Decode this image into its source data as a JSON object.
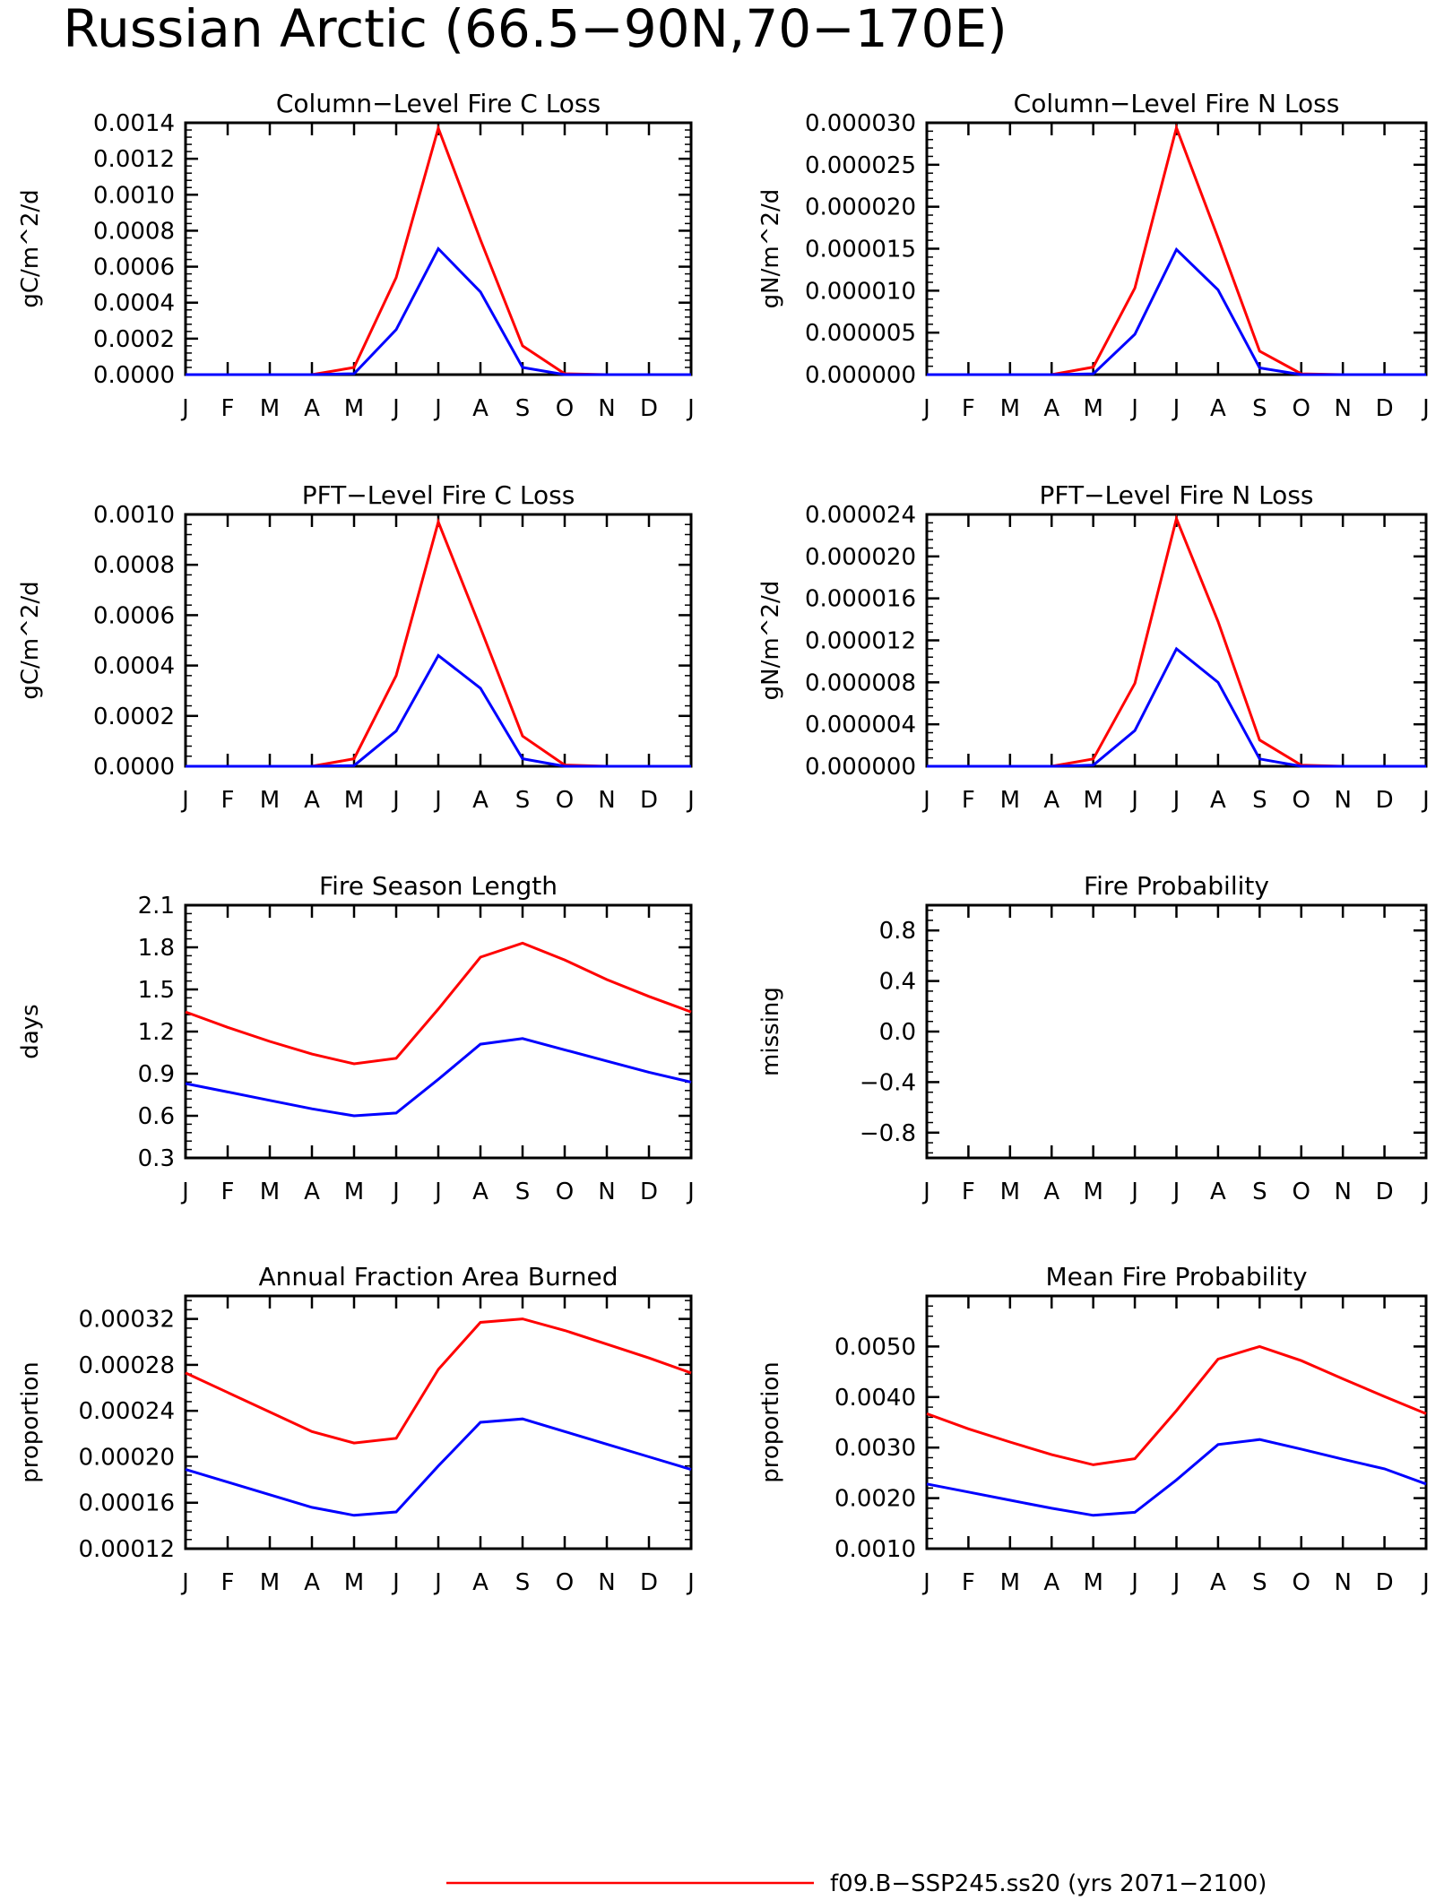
{
  "page_title": "Russian Arctic (66.5−90N,70−170E)",
  "colors": {
    "series_red": "#ff0000",
    "series_blue": "#0000ff",
    "axis": "#000000"
  },
  "legend": [
    {
      "label": "f09.B−SSP245.ss20 (yrs 2071−2100)",
      "color": "#ff0000"
    }
  ],
  "chart_data": [
    {
      "type": "line",
      "title": "Column−Level Fire C Loss",
      "ylabel": "gC/m^2/d",
      "x": [
        "J",
        "F",
        "M",
        "A",
        "M",
        "J",
        "J",
        "A",
        "S",
        "O",
        "N",
        "D",
        "J"
      ],
      "ylim": [
        0,
        0.0014
      ],
      "yticks": [
        "0.0000",
        "0.0002",
        "0.0004",
        "0.0006",
        "0.0008",
        "0.0010",
        "0.0012",
        "0.0014"
      ],
      "series": [
        {
          "color": "#ff0000",
          "values": [
            0,
            0,
            0,
            0,
            4e-05,
            0.00054,
            0.00137,
            0.00075,
            0.00016,
            5e-06,
            0,
            0,
            0
          ]
        },
        {
          "color": "#0000ff",
          "values": [
            0,
            0,
            0,
            0,
            5e-06,
            0.00025,
            0.0007,
            0.00046,
            4e-05,
            0,
            0,
            0,
            0
          ]
        }
      ]
    },
    {
      "type": "line",
      "title": "Column−Level Fire N Loss",
      "ylabel": "gN/m^2/d",
      "x": [
        "J",
        "F",
        "M",
        "A",
        "M",
        "J",
        "J",
        "A",
        "S",
        "O",
        "N",
        "D",
        "J"
      ],
      "ylim": [
        0,
        3e-05
      ],
      "yticks": [
        "0.000000",
        "0.000005",
        "0.000010",
        "0.000015",
        "0.000020",
        "0.000025",
        "0.000030"
      ],
      "series": [
        {
          "color": "#ff0000",
          "values": [
            0,
            0,
            0,
            0,
            9e-07,
            1.03e-05,
            2.94e-05,
            1.63e-05,
            2.8e-06,
            1e-07,
            0,
            0,
            0
          ]
        },
        {
          "color": "#0000ff",
          "values": [
            0,
            0,
            0,
            0,
            1e-07,
            4.8e-06,
            1.49e-05,
            1.01e-05,
            8e-07,
            0,
            0,
            0,
            0
          ]
        }
      ]
    },
    {
      "type": "line",
      "title": "PFT−Level Fire C Loss",
      "ylabel": "gC/m^2/d",
      "x": [
        "J",
        "F",
        "M",
        "A",
        "M",
        "J",
        "J",
        "A",
        "S",
        "O",
        "N",
        "D",
        "J"
      ],
      "ylim": [
        0,
        0.001
      ],
      "yticks": [
        "0.0000",
        "0.0002",
        "0.0004",
        "0.0006",
        "0.0008",
        "0.0010"
      ],
      "series": [
        {
          "color": "#ff0000",
          "values": [
            0,
            0,
            0,
            0,
            3e-05,
            0.00036,
            0.00097,
            0.00055,
            0.00012,
            5e-06,
            0,
            0,
            0
          ]
        },
        {
          "color": "#0000ff",
          "values": [
            0,
            0,
            0,
            0,
            3e-06,
            0.00014,
            0.00044,
            0.00031,
            3e-05,
            0,
            0,
            0,
            0
          ]
        }
      ]
    },
    {
      "type": "line",
      "title": "PFT−Level Fire N Loss",
      "ylabel": "gN/m^2/d",
      "x": [
        "J",
        "F",
        "M",
        "A",
        "M",
        "J",
        "J",
        "A",
        "S",
        "O",
        "N",
        "D",
        "J"
      ],
      "ylim": [
        0,
        2.4e-05
      ],
      "yticks": [
        "0.000000",
        "0.000004",
        "0.000008",
        "0.000012",
        "0.000016",
        "0.000020",
        "0.000024"
      ],
      "series": [
        {
          "color": "#ff0000",
          "values": [
            0,
            0,
            0,
            0,
            7e-07,
            7.9e-06,
            2.36e-05,
            1.38e-05,
            2.5e-06,
            1e-07,
            0,
            0,
            0
          ]
        },
        {
          "color": "#0000ff",
          "values": [
            0,
            0,
            0,
            0,
            1e-07,
            3.4e-06,
            1.12e-05,
            8e-06,
            7e-07,
            0,
            0,
            0,
            0
          ]
        }
      ]
    },
    {
      "type": "line",
      "title": "Fire Season Length",
      "ylabel": "days",
      "x": [
        "J",
        "F",
        "M",
        "A",
        "M",
        "J",
        "J",
        "A",
        "S",
        "O",
        "N",
        "D",
        "J"
      ],
      "ylim": [
        0.3,
        2.1
      ],
      "yticks": [
        "0.3",
        "0.6",
        "0.9",
        "1.2",
        "1.5",
        "1.8",
        "2.1"
      ],
      "series": [
        {
          "color": "#ff0000",
          "values": [
            1.34,
            1.23,
            1.13,
            1.04,
            0.97,
            1.01,
            1.36,
            1.73,
            1.83,
            1.71,
            1.57,
            1.45,
            1.34
          ]
        },
        {
          "color": "#0000ff",
          "values": [
            0.83,
            0.77,
            0.71,
            0.65,
            0.6,
            0.62,
            0.86,
            1.11,
            1.15,
            1.07,
            0.99,
            0.91,
            0.84
          ]
        }
      ]
    },
    {
      "type": "line",
      "title": "Fire Probability",
      "ylabel": "missing",
      "x": [
        "J",
        "F",
        "M",
        "A",
        "M",
        "J",
        "J",
        "A",
        "S",
        "O",
        "N",
        "D",
        "J"
      ],
      "ylim": [
        -1,
        1
      ],
      "yticks": [
        "−0.8",
        "−0.4",
        "0.0",
        "0.4",
        "0.8"
      ],
      "ytick_values": [
        -0.8,
        -0.4,
        0,
        0.4,
        0.8
      ],
      "series": []
    },
    {
      "type": "line",
      "title": "Annual Fraction Area Burned",
      "ylabel": "proportion",
      "x": [
        "J",
        "F",
        "M",
        "A",
        "M",
        "J",
        "J",
        "A",
        "S",
        "O",
        "N",
        "D",
        "J"
      ],
      "ylim": [
        0.00012,
        0.00034
      ],
      "yticks": [
        "0.00012",
        "0.00016",
        "0.00020",
        "0.00024",
        "0.00028",
        "0.00032"
      ],
      "ytick_values": [
        0.00012,
        0.00016,
        0.0002,
        0.00024,
        0.00028,
        0.00032
      ],
      "series": [
        {
          "color": "#ff0000",
          "values": [
            0.000273,
            0.000256,
            0.000239,
            0.000222,
            0.000212,
            0.000216,
            0.000276,
            0.000317,
            0.00032,
            0.00031,
            0.000298,
            0.000286,
            0.000273
          ]
        },
        {
          "color": "#0000ff",
          "values": [
            0.000189,
            0.000178,
            0.000167,
            0.000156,
            0.000149,
            0.000152,
            0.000192,
            0.00023,
            0.000233,
            0.000222,
            0.000211,
            0.0002,
            0.000189
          ]
        }
      ]
    },
    {
      "type": "line",
      "title": "Mean Fire Probability",
      "ylabel": "proportion",
      "x": [
        "J",
        "F",
        "M",
        "A",
        "M",
        "J",
        "J",
        "A",
        "S",
        "O",
        "N",
        "D",
        "J"
      ],
      "ylim": [
        0.001,
        0.006
      ],
      "yticks": [
        "0.0010",
        "0.0020",
        "0.0030",
        "0.0040",
        "0.0050"
      ],
      "ytick_values": [
        0.001,
        0.002,
        0.003,
        0.004,
        0.005
      ],
      "series": [
        {
          "color": "#ff0000",
          "values": [
            0.00367,
            0.00337,
            0.00311,
            0.00286,
            0.00266,
            0.00278,
            0.00373,
            0.00475,
            0.005,
            0.00472,
            0.00436,
            0.00401,
            0.00367
          ]
        },
        {
          "color": "#0000ff",
          "values": [
            0.00228,
            0.00212,
            0.00196,
            0.0018,
            0.00166,
            0.00172,
            0.00236,
            0.00306,
            0.00316,
            0.00297,
            0.00277,
            0.00258,
            0.00228
          ]
        }
      ]
    }
  ]
}
